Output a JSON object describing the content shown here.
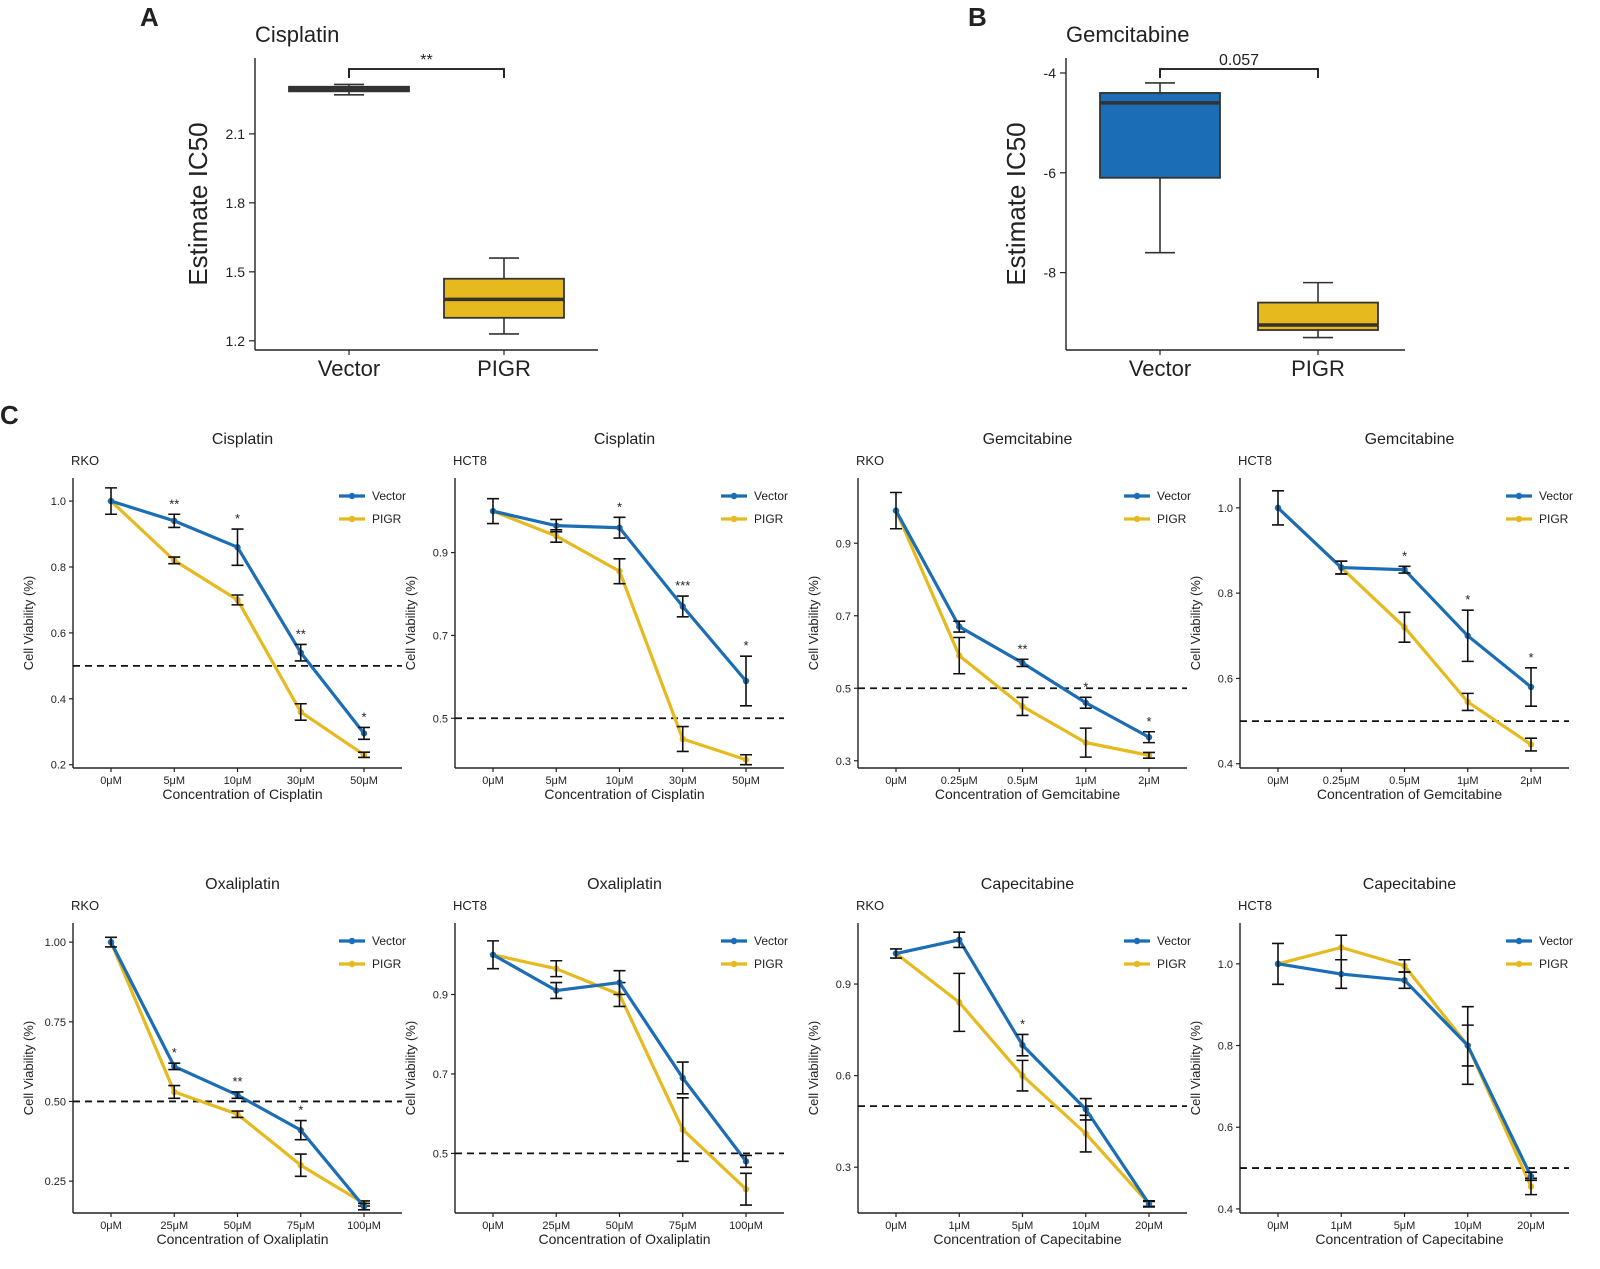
{
  "colors": {
    "vector": "#1B6DB5",
    "pigr": "#E6B91E",
    "box_vector_a": "#2B3A48",
    "box_pigr": "#E6B91E",
    "box_vector_b": "#1B6DB5"
  },
  "panel_labels": {
    "a": "A",
    "b": "B",
    "c": "C"
  },
  "chart_data": [
    {
      "id": "A",
      "type": "box",
      "title": "Cisplatin",
      "ylabel": "Estimate IC50",
      "categories": [
        "Vector",
        "PIGR"
      ],
      "ylim": [
        1.16,
        2.43
      ],
      "yticks": [
        1.2,
        1.5,
        1.8,
        2.1
      ],
      "ytick_labels": [
        "1.2",
        "1.5",
        "1.8",
        "2.1"
      ],
      "boxes": [
        {
          "category": "Vector",
          "min": 2.27,
          "q1": 2.285,
          "median": 2.295,
          "q3": 2.305,
          "max": 2.315
        },
        {
          "category": "PIGR",
          "min": 1.23,
          "q1": 1.3,
          "median": 1.38,
          "q3": 1.47,
          "max": 1.56
        }
      ],
      "significance": "**"
    },
    {
      "id": "B",
      "type": "box",
      "title": "Gemcitabine",
      "ylabel": "Estimate IC50",
      "categories": [
        "Vector",
        "PIGR"
      ],
      "ylim": [
        -9.55,
        -3.7
      ],
      "yticks": [
        -4,
        -6,
        -8
      ],
      "ytick_labels": [
        "-4",
        "-6",
        "-8"
      ],
      "boxes": [
        {
          "category": "Vector",
          "min": -7.6,
          "q1": -6.1,
          "median": -4.6,
          "q3": -4.4,
          "max": -4.2
        },
        {
          "category": "PIGR",
          "min": -9.3,
          "q1": -9.15,
          "median": -9.05,
          "q3": -8.6,
          "max": -8.2
        }
      ],
      "significance": "0.057"
    },
    {
      "id": "C1",
      "type": "line",
      "title": "Cisplatin",
      "cell_line": "RKO",
      "xlabel": "Concentration of Cisplatin",
      "ylabel": "Cell Viability (%)",
      "categories": [
        "0μM",
        "5μM",
        "10μM",
        "30μM",
        "50μM"
      ],
      "ylim": [
        0.19,
        1.07
      ],
      "yticks": [
        0.2,
        0.4,
        0.6,
        0.8,
        1.0
      ],
      "ytick_labels": [
        "0.2",
        "0.4",
        "0.6",
        "0.8",
        "1.0"
      ],
      "threshold": 0.5,
      "series": [
        {
          "name": "Vector",
          "values": [
            1.0,
            0.94,
            0.86,
            0.54,
            0.295
          ],
          "errors": [
            0.04,
            0.02,
            0.055,
            0.025,
            0.018
          ]
        },
        {
          "name": "PIGR",
          "values": [
            1.0,
            0.82,
            0.7,
            0.36,
            0.23
          ],
          "errors": [
            0.0,
            0.01,
            0.015,
            0.025,
            0.008
          ]
        }
      ],
      "annotations": [
        "",
        "**",
        "*",
        "**",
        "*"
      ]
    },
    {
      "id": "C2",
      "type": "line",
      "title": "Cisplatin",
      "cell_line": "HCT8",
      "xlabel": "Concentration of Cisplatin",
      "ylabel": "Cell Viability (%)",
      "categories": [
        "0μM",
        "5μM",
        "10μM",
        "30μM",
        "50μM"
      ],
      "ylim": [
        0.38,
        1.08
      ],
      "yticks": [
        0.5,
        0.7,
        0.9
      ],
      "ytick_labels": [
        "0.5",
        "0.7",
        "0.9"
      ],
      "threshold": 0.5,
      "series": [
        {
          "name": "Vector",
          "values": [
            1.0,
            0.965,
            0.96,
            0.77,
            0.59
          ],
          "errors": [
            0.03,
            0.015,
            0.025,
            0.025,
            0.06
          ]
        },
        {
          "name": "PIGR",
          "values": [
            1.0,
            0.94,
            0.855,
            0.45,
            0.4
          ],
          "errors": [
            0.0,
            0.015,
            0.03,
            0.03,
            0.012
          ]
        }
      ],
      "annotations": [
        "",
        "",
        "*",
        "***",
        "*"
      ]
    },
    {
      "id": "C3",
      "type": "line",
      "title": "Gemcitabine",
      "cell_line": "RKO",
      "xlabel": "Concentration of Gemcitabine",
      "ylabel": "Cell Viability (%)",
      "categories": [
        "0μM",
        "0.25μM",
        "0.5μM",
        "1μM",
        "2μM"
      ],
      "ylim": [
        0.28,
        1.08
      ],
      "yticks": [
        0.3,
        0.5,
        0.7,
        0.9
      ],
      "ytick_labels": [
        "0.3",
        "0.5",
        "0.7",
        "0.9"
      ],
      "threshold": 0.5,
      "series": [
        {
          "name": "Vector",
          "values": [
            0.99,
            0.67,
            0.57,
            0.46,
            0.365
          ],
          "errors": [
            0.05,
            0.015,
            0.01,
            0.015,
            0.015
          ]
        },
        {
          "name": "PIGR",
          "values": [
            0.99,
            0.59,
            0.45,
            0.35,
            0.315
          ],
          "errors": [
            0.0,
            0.05,
            0.025,
            0.04,
            0.008
          ]
        }
      ],
      "annotations": [
        "",
        "",
        "**",
        "*",
        "*"
      ]
    },
    {
      "id": "C4",
      "type": "line",
      "title": "Gemcitabine",
      "cell_line": "HCT8",
      "xlabel": "Concentration of Gemcitabine",
      "ylabel": "Cell Viability (%)",
      "categories": [
        "0μM",
        "0.25μM",
        "0.5μM",
        "1μM",
        "2μM"
      ],
      "ylim": [
        0.39,
        1.07
      ],
      "yticks": [
        0.4,
        0.6,
        0.8,
        1.0
      ],
      "ytick_labels": [
        "0.4",
        "0.6",
        "0.8",
        "1.0"
      ],
      "threshold": 0.5,
      "series": [
        {
          "name": "Vector",
          "values": [
            1.0,
            0.86,
            0.855,
            0.7,
            0.58
          ],
          "errors": [
            0.04,
            0.015,
            0.008,
            0.06,
            0.045
          ]
        },
        {
          "name": "PIGR",
          "values": [
            1.0,
            0.86,
            0.72,
            0.545,
            0.445
          ],
          "errors": [
            0.0,
            0.015,
            0.035,
            0.02,
            0.015
          ]
        }
      ],
      "annotations": [
        "",
        "",
        "*",
        "*",
        "*"
      ]
    },
    {
      "id": "C5",
      "type": "line",
      "title": "Oxaliplatin",
      "cell_line": "RKO",
      "xlabel": "Concentration of Oxaliplatin",
      "ylabel": "Cell Viability (%)",
      "categories": [
        "0μM",
        "25μM",
        "50μM",
        "75μM",
        "100μM"
      ],
      "ylim": [
        0.15,
        1.06
      ],
      "yticks": [
        0.25,
        0.5,
        0.75,
        1.0
      ],
      "ytick_labels": [
        "0.25",
        "0.50",
        "0.75",
        "1.00"
      ],
      "threshold": 0.5,
      "series": [
        {
          "name": "Vector",
          "values": [
            1.0,
            0.61,
            0.52,
            0.41,
            0.17
          ],
          "errors": [
            0.015,
            0.01,
            0.01,
            0.03,
            0.01
          ]
        },
        {
          "name": "PIGR",
          "values": [
            1.0,
            0.53,
            0.46,
            0.3,
            0.18
          ],
          "errors": [
            0.0,
            0.02,
            0.01,
            0.035,
            0.008
          ]
        }
      ],
      "annotations": [
        "",
        "*",
        "**",
        "*",
        ""
      ]
    },
    {
      "id": "C6",
      "type": "line",
      "title": "Oxaliplatin",
      "cell_line": "HCT8",
      "xlabel": "Concentration of Oxaliplatin",
      "ylabel": "Cell Viability (%)",
      "categories": [
        "0μM",
        "25μM",
        "50μM",
        "75μM",
        "100μM"
      ],
      "ylim": [
        0.35,
        1.08
      ],
      "yticks": [
        0.5,
        0.7,
        0.9
      ],
      "ytick_labels": [
        "0.5",
        "0.7",
        "0.9"
      ],
      "threshold": 0.5,
      "series": [
        {
          "name": "Vector",
          "values": [
            1.0,
            0.91,
            0.93,
            0.69,
            0.48
          ],
          "errors": [
            0.035,
            0.02,
            0.03,
            0.04,
            0.015
          ]
        },
        {
          "name": "PIGR",
          "values": [
            1.0,
            0.965,
            0.9,
            0.56,
            0.41
          ],
          "errors": [
            0.0,
            0.02,
            0.03,
            0.08,
            0.04
          ]
        }
      ],
      "annotations": [
        "",
        "",
        "",
        "",
        ""
      ]
    },
    {
      "id": "C7",
      "type": "line",
      "title": "Capecitabine",
      "cell_line": "RKO",
      "xlabel": "Concentration of Capecitabine",
      "ylabel": "Cell Viability (%)",
      "categories": [
        "0μM",
        "1μM",
        "5μM",
        "10μM",
        "20μM"
      ],
      "ylim": [
        0.15,
        1.1
      ],
      "yticks": [
        0.3,
        0.6,
        0.9
      ],
      "ytick_labels": [
        "0.3",
        "0.6",
        "0.9"
      ],
      "threshold": 0.5,
      "series": [
        {
          "name": "Vector",
          "values": [
            1.0,
            1.045,
            0.7,
            0.49,
            0.18
          ],
          "errors": [
            0.015,
            0.025,
            0.035,
            0.035,
            0.01
          ]
        },
        {
          "name": "PIGR",
          "values": [
            1.0,
            0.84,
            0.6,
            0.41,
            0.18
          ],
          "errors": [
            0.0,
            0.095,
            0.05,
            0.06,
            0.008
          ]
        }
      ],
      "annotations": [
        "",
        "",
        "*",
        "",
        ""
      ]
    },
    {
      "id": "C8",
      "type": "line",
      "title": "Capecitabine",
      "cell_line": "HCT8",
      "xlabel": "Concentration of Capecitabine",
      "ylabel": "Cell Viability (%)",
      "categories": [
        "0μM",
        "1μM",
        "5μM",
        "10μM",
        "20μM"
      ],
      "ylim": [
        0.39,
        1.1
      ],
      "yticks": [
        0.4,
        0.6,
        0.8,
        1.0
      ],
      "ytick_labels": [
        "0.4",
        "0.6",
        "0.8",
        "1.0"
      ],
      "threshold": 0.5,
      "series": [
        {
          "name": "Vector",
          "values": [
            1.0,
            0.975,
            0.96,
            0.8,
            0.48
          ],
          "errors": [
            0.05,
            0.035,
            0.02,
            0.095,
            0.01
          ]
        },
        {
          "name": "PIGR",
          "values": [
            1.0,
            1.04,
            0.995,
            0.8,
            0.455
          ],
          "errors": [
            0.0,
            0.03,
            0.015,
            0.05,
            0.02
          ]
        }
      ],
      "annotations": [
        "",
        "",
        "",
        "",
        ""
      ]
    }
  ]
}
